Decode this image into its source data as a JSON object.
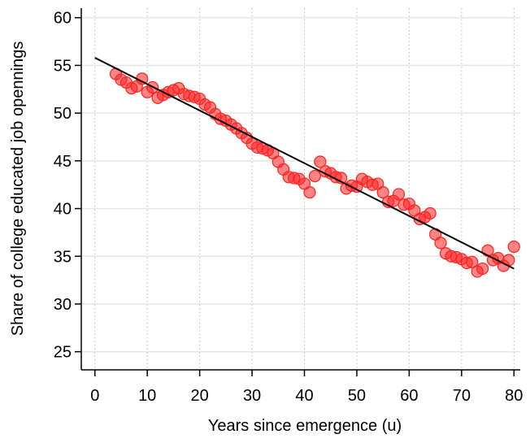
{
  "chart_data": {
    "type": "scatter",
    "x_label": "Years since emergence (u)",
    "y_label": "Share of college educated job opennings",
    "x": [
      4,
      5,
      6,
      7,
      8,
      9,
      10,
      11,
      12,
      13,
      14,
      15,
      16,
      17,
      18,
      19,
      20,
      21,
      22,
      23,
      24,
      25,
      26,
      27,
      28,
      29,
      30,
      31,
      32,
      33,
      34,
      35,
      36,
      37,
      38,
      39,
      40,
      41,
      42,
      43,
      44,
      45,
      46,
      47,
      48,
      49,
      50,
      51,
      52,
      53,
      54,
      55,
      56,
      57,
      58,
      59,
      60,
      61,
      62,
      63,
      64,
      65,
      66,
      67,
      68,
      69,
      70,
      71,
      72,
      73,
      74,
      75,
      76,
      77,
      78,
      79,
      80
    ],
    "values": [
      54.1,
      53.5,
      53.2,
      52.6,
      52.8,
      53.6,
      52.2,
      52.7,
      51.6,
      51.9,
      52.2,
      52.4,
      52.6,
      52.0,
      51.8,
      51.7,
      51.5,
      50.9,
      50.6,
      49.9,
      49.4,
      49.2,
      48.8,
      48.4,
      47.9,
      47.4,
      46.8,
      46.4,
      46.3,
      46.1,
      45.8,
      44.9,
      44.1,
      43.3,
      43.2,
      43.1,
      42.6,
      41.7,
      43.4,
      44.9,
      43.9,
      43.7,
      43.3,
      43.2,
      42.1,
      42.4,
      42.3,
      43.1,
      42.8,
      42.5,
      42.6,
      41.7,
      40.7,
      40.8,
      41.5,
      40.4,
      40.5,
      39.8,
      38.9,
      39.1,
      39.5,
      37.3,
      36.4,
      35.3,
      35.0,
      34.9,
      34.7,
      34.3,
      34.4,
      33.4,
      33.7,
      35.6,
      34.6,
      34.8,
      34.0,
      34.6,
      36.0
    ],
    "color": "#ff2020",
    "fit": {
      "x": [
        0,
        80
      ],
      "values": [
        55.8,
        33.7
      ],
      "color": "#000000"
    },
    "xlim": [
      -2.6,
      81.2
    ],
    "ylim": [
      23.1,
      61
    ],
    "xticks": [
      0,
      10,
      20,
      30,
      40,
      50,
      60,
      70,
      80
    ],
    "yticks": [
      25,
      30,
      35,
      40,
      45,
      50,
      55,
      60
    ],
    "grid": true
  }
}
